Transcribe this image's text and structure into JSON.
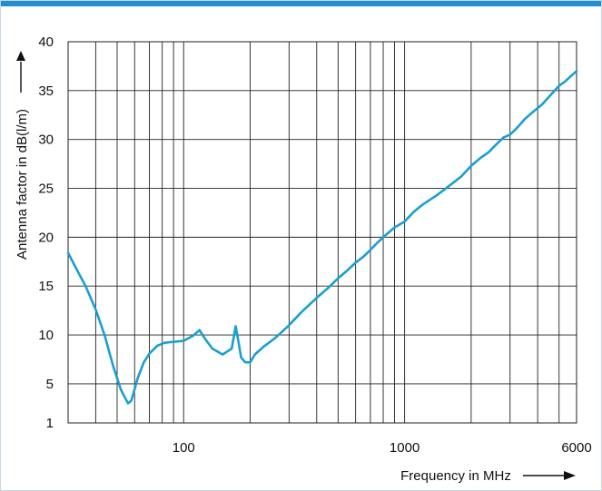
{
  "chart_data": {
    "type": "line",
    "title": "",
    "xlabel": "Frequency in MHz",
    "ylabel": "Antenna factor in dB(l/m)",
    "x_scale": "log",
    "xlim": [
      30,
      6000
    ],
    "ylim": [
      1,
      40
    ],
    "x_tick_labels": [
      {
        "value": 100,
        "label": "100"
      },
      {
        "value": 1000,
        "label": "1000"
      },
      {
        "value": 6000,
        "label": "6000"
      }
    ],
    "y_tick_labels": [
      {
        "value": 1,
        "label": "1"
      },
      {
        "value": 5,
        "label": "5"
      },
      {
        "value": 10,
        "label": "10"
      },
      {
        "value": 15,
        "label": "15"
      },
      {
        "value": 20,
        "label": "20"
      },
      {
        "value": 25,
        "label": "25"
      },
      {
        "value": 30,
        "label": "30"
      },
      {
        "value": 35,
        "label": "35"
      },
      {
        "value": 40,
        "label": "40"
      }
    ],
    "x_gridlines": [
      30,
      40,
      50,
      60,
      70,
      80,
      90,
      100,
      200,
      300,
      400,
      500,
      600,
      700,
      800,
      900,
      1000,
      2000,
      3000,
      4000,
      5000,
      6000
    ],
    "y_gridlines": [
      5,
      10,
      15,
      20,
      25,
      30,
      35,
      40
    ],
    "grid": true,
    "series": [
      {
        "x": [
          30,
          33,
          36,
          40,
          44,
          48,
          52,
          56,
          58,
          62,
          66,
          70,
          76,
          82,
          90,
          100,
          110,
          118,
          125,
          135,
          150,
          165,
          172,
          178,
          182,
          190,
          200,
          210,
          230,
          260,
          300,
          340,
          400,
          450,
          500,
          550,
          600,
          650,
          700,
          750,
          800,
          900,
          1000,
          1100,
          1200,
          1400,
          1600,
          1800,
          2000,
          2200,
          2400,
          2600,
          2800,
          3000,
          3200,
          3500,
          3800,
          4200,
          4600,
          5000,
          5300,
          5600,
          6000
        ],
        "y": [
          18.4,
          16.6,
          15.0,
          12.6,
          9.9,
          6.8,
          4.4,
          3.0,
          3.3,
          5.6,
          7.2,
          8.1,
          8.9,
          9.2,
          9.3,
          9.4,
          9.9,
          10.5,
          9.6,
          8.6,
          8.0,
          8.6,
          10.9,
          9.0,
          7.7,
          7.2,
          7.2,
          8.0,
          8.8,
          9.7,
          11.0,
          12.3,
          13.8,
          14.8,
          15.8,
          16.6,
          17.4,
          18.0,
          18.7,
          19.4,
          20.0,
          21.0,
          21.6,
          22.6,
          23.3,
          24.3,
          25.3,
          26.2,
          27.3,
          28.1,
          28.7,
          29.5,
          30.2,
          30.5,
          31.1,
          32.1,
          32.8,
          33.6,
          34.6,
          35.5,
          35.9,
          36.4,
          37.0
        ]
      }
    ],
    "line_color": "#1a9fd0"
  }
}
